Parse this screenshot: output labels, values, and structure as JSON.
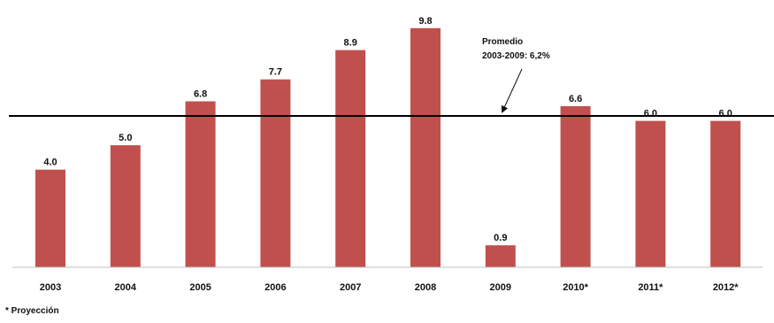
{
  "chart_data": {
    "type": "bar",
    "categories": [
      "2003",
      "2004",
      "2005",
      "2006",
      "2007",
      "2008",
      "2009",
      "2010*",
      "2011*",
      "2012*"
    ],
    "values": [
      4.0,
      5.0,
      6.8,
      7.7,
      8.9,
      9.8,
      0.9,
      6.6,
      6.0,
      6.0
    ],
    "value_labels": [
      "4.0",
      "5.0",
      "6.8",
      "7.7",
      "8.9",
      "9.8",
      "0.9",
      "6.6",
      "6.0",
      "6.0"
    ],
    "ylim": [
      0,
      10.3
    ],
    "reference_line": {
      "value": 6.2
    },
    "annotation": {
      "line1": "Promedio",
      "line2": "2003-2009: 6,2%"
    },
    "footnote": "* Proyección",
    "bar_color": "#c0504d",
    "line_color": "#000000",
    "grid": false
  }
}
